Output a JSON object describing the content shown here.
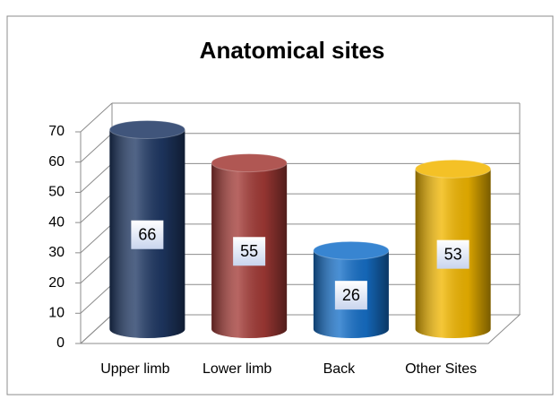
{
  "chart_data": {
    "type": "bar3d",
    "title": "Anatomical sites",
    "categories": [
      "Upper limb",
      "Lower limb",
      "Back",
      "Other Sites"
    ],
    "values": [
      66,
      55,
      26,
      53
    ],
    "colors": [
      "#1f3864",
      "#a33a36",
      "#1670c9",
      "#f2b700"
    ],
    "ylim": [
      0,
      70
    ],
    "yticks": [
      0,
      10,
      20,
      30,
      40,
      50,
      60,
      70
    ],
    "grid": true
  }
}
